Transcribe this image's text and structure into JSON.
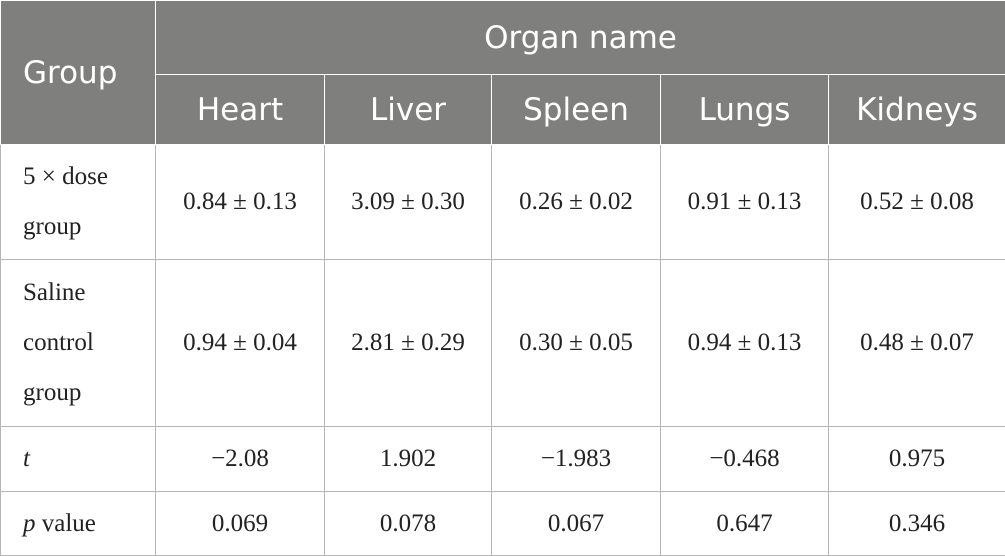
{
  "header": {
    "group": "Group",
    "organ_name": "Organ name",
    "organs": [
      "Heart",
      "Liver",
      "Spleen",
      "Lungs",
      "Kidneys"
    ]
  },
  "rows": [
    {
      "label_lines": [
        "5 × dose",
        "group"
      ],
      "values": [
        "0.84 ± 0.13",
        "3.09 ± 0.30",
        "0.26 ± 0.02",
        "0.91 ± 0.13",
        "0.52 ± 0.08"
      ]
    },
    {
      "label_lines": [
        "Saline",
        "control",
        "group"
      ],
      "values": [
        "0.94 ± 0.04",
        "2.81 ± 0.29",
        "0.30 ± 0.05",
        "0.94 ± 0.13",
        "0.48 ± 0.07"
      ]
    },
    {
      "label_italic": "t",
      "values": [
        "−2.08",
        "1.902",
        "−1.983",
        "−0.468",
        "0.975"
      ]
    },
    {
      "label_italic": "p",
      "label_rest": " value",
      "values": [
        "0.069",
        "0.078",
        "0.067",
        "0.647",
        "0.346"
      ]
    }
  ]
}
